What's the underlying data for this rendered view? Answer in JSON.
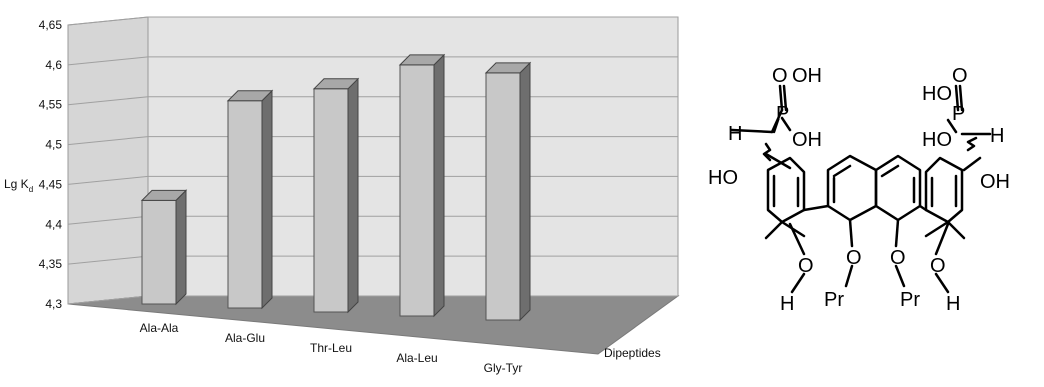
{
  "chart_data": {
    "type": "bar",
    "categories": [
      "Ala-Ala",
      "Ala-Glu",
      "Thr-Leu",
      "Ala-Leu",
      "Gly-Tyr"
    ],
    "values": [
      4.43,
      4.56,
      4.58,
      4.615,
      4.61
    ],
    "ylabel_main": "Lg K",
    "ylabel_sub": "d",
    "xlabel": "Dipeptides",
    "ylim": [
      4.3,
      4.65
    ],
    "yticks": [
      "4,3",
      "4,35",
      "4,4",
      "4,45",
      "4,5",
      "4,55",
      "4,6",
      "4,65"
    ],
    "grid": true,
    "style": "3d",
    "colors": {
      "bar_front": "#c8c8c8",
      "bar_side": "#6e6e6e",
      "bar_top": "#a8a8a8",
      "wall": "#e4e4e4",
      "floor": "#8c8c8c",
      "grid": "#a0a0a0"
    }
  },
  "molecule": {
    "labels": {
      "o_left": "O",
      "oh_left1": "OH",
      "p_left": "P",
      "oh_left2": "OH",
      "h_left": "H",
      "ho_left": "HO",
      "o_right": "O",
      "ho_right1": "HO",
      "p_right": "P",
      "h_right": "H",
      "ho_right2": "HO",
      "oh_right": "OH",
      "o1": "O",
      "o2": "O",
      "o3": "O",
      "o4": "O",
      "h_bottom_left": "H",
      "pr1": "Pr",
      "pr2": "Pr",
      "h_bottom_right": "H"
    }
  }
}
